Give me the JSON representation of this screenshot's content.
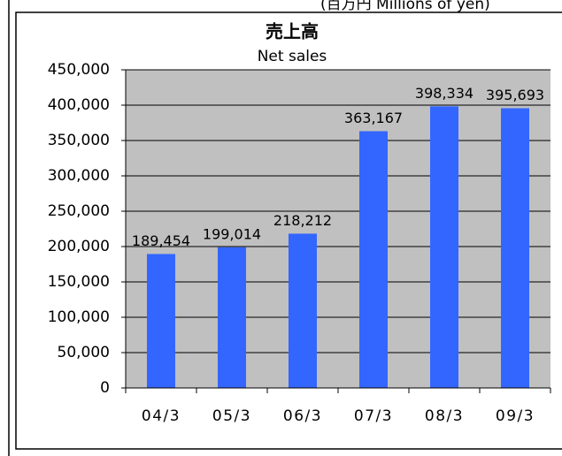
{
  "chart_data": {
    "type": "bar",
    "title": "売上高",
    "subtitle": "Net sales",
    "unit_note": "(百万円 Millions of yen)",
    "categories": [
      "04/3",
      "05/3",
      "06/3",
      "07/3",
      "08/3",
      "09/3"
    ],
    "values": [
      189454,
      199014,
      218212,
      363167,
      398334,
      395693
    ],
    "value_labels": [
      "189,454",
      "199,014",
      "218,212",
      "363,167",
      "398,334",
      "395,693"
    ],
    "color": "#3366ff",
    "ylim": [
      0,
      450000
    ],
    "yticks": [
      0,
      {
        "value": 50000,
        "label": "50,000"
      },
      {
        "value": 100000,
        "label": "100,000"
      },
      {
        "value": 150000,
        "label": "150,000"
      },
      {
        "value": 200000,
        "label": "200,000"
      },
      {
        "value": 250000,
        "label": "250,000"
      },
      {
        "value": 300000,
        "label": "300,000"
      },
      {
        "value": 350000,
        "label": "350,000"
      },
      {
        "value": 400000,
        "label": "400,000"
      },
      {
        "value": 450000,
        "label": "450,000"
      }
    ],
    "grid": true
  }
}
